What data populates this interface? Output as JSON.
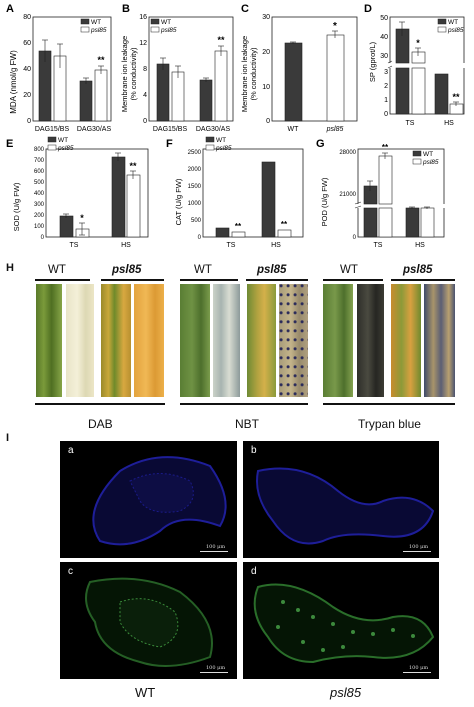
{
  "panels": {
    "A": {
      "letter": "A",
      "ylabel": "MDA (nmol/g FW)",
      "legend": [
        "WT",
        "psl85"
      ],
      "yticks": [
        "0",
        "20",
        "40",
        "60",
        "80"
      ],
      "categories": [
        "DAG15/BS",
        "DAG30/AS"
      ],
      "sig": "**"
    },
    "B": {
      "letter": "B",
      "ylabel_1": "Membrane ion leakage",
      "ylabel_2": "(% conductivity)",
      "legend": [
        "WT",
        "psl85"
      ],
      "yticks": [
        "0",
        "4",
        "8",
        "12",
        "16"
      ],
      "categories": [
        "DAG15/BS",
        "DAG30/AS"
      ],
      "sig": "**"
    },
    "C": {
      "letter": "C",
      "ylabel_1": "Membrane ion leakage",
      "ylabel_2": "(% conductivity)",
      "yticks": [
        "0",
        "10",
        "20",
        "30"
      ],
      "categories": [
        "WT",
        "psl85"
      ],
      "sig": "*"
    },
    "D": {
      "letter": "D",
      "ylabel": "SP (gprot/L)",
      "legend": [
        "WT",
        "psl85"
      ],
      "yticks": [
        "0",
        "1",
        "2",
        "3",
        "30",
        "40",
        "50"
      ],
      "categories": [
        "TS",
        "HS"
      ],
      "sig_ts": "*",
      "sig_hs": "**"
    },
    "E": {
      "letter": "E",
      "ylabel": "SOD (U/g FW)",
      "legend": [
        "WT",
        "psl85"
      ],
      "yticks": [
        "0",
        "100",
        "200",
        "300",
        "400",
        "500",
        "600",
        "700",
        "800"
      ],
      "categories": [
        "TS",
        "HS"
      ],
      "sig_ts": "*",
      "sig_hs": "**"
    },
    "F": {
      "letter": "F",
      "ylabel": "CAT (U/g FW)",
      "legend": [
        "WT",
        "psl85"
      ],
      "yticks": [
        "0",
        "500",
        "1000",
        "1500",
        "2000",
        "2500"
      ],
      "categories": [
        "TS",
        "HS"
      ],
      "sig_ts": "**",
      "sig_hs": "**"
    },
    "G": {
      "letter": "G",
      "ylabel": "POD (U/g FW)",
      "legend": [
        "WT",
        "psl85"
      ],
      "yticks": [
        "0",
        "21000",
        "28000"
      ],
      "categories": [
        "TS",
        "HS"
      ],
      "sig_ts": "**"
    },
    "H": {
      "letter": "H",
      "groups": [
        {
          "wt": "WT",
          "mut": "psl85",
          "stain": "DAB"
        },
        {
          "wt": "WT",
          "mut": "psl85",
          "stain": "NBT"
        },
        {
          "wt": "WT",
          "mut": "psl85",
          "stain": "Trypan blue"
        }
      ]
    },
    "I": {
      "letter": "I",
      "subpanels": [
        "a",
        "b",
        "c",
        "d"
      ],
      "scale": "100 μm",
      "bottom_wt": "WT",
      "bottom_mut": "psl85"
    }
  },
  "chart_data": [
    {
      "type": "bar",
      "panel": "A",
      "ylabel": "MDA (nmol/g FW)",
      "ylim": [
        0,
        80
      ],
      "categories": [
        "DAG15/BS",
        "DAG30/AS"
      ],
      "series": [
        {
          "name": "WT",
          "values": [
            54,
            31
          ],
          "errors": [
            8,
            2
          ]
        },
        {
          "name": "psl85",
          "values": [
            50,
            39
          ],
          "errors": [
            9,
            3
          ]
        }
      ]
    },
    {
      "type": "bar",
      "panel": "B",
      "ylabel": "Membrane ion leakage (% conductivity)",
      "ylim": [
        0,
        16
      ],
      "categories": [
        "DAG15/BS",
        "DAG30/AS"
      ],
      "series": [
        {
          "name": "WT",
          "values": [
            8.8,
            6.3
          ],
          "errors": [
            1.0,
            0.3
          ]
        },
        {
          "name": "psl85",
          "values": [
            7.6,
            10.7
          ],
          "errors": [
            1.0,
            0.8
          ]
        }
      ]
    },
    {
      "type": "bar",
      "panel": "C",
      "ylabel": "Membrane ion leakage (% conductivity)",
      "ylim": [
        0,
        30
      ],
      "categories": [
        "WT",
        "psl85"
      ],
      "series": [
        {
          "values": [
            22.5,
            24.7
          ],
          "errors": [
            0.4,
            1.0
          ]
        }
      ]
    },
    {
      "type": "bar",
      "panel": "D",
      "ylabel": "SP (gprot/L)",
      "categories": [
        "TS",
        "HS"
      ],
      "series": [
        {
          "name": "WT",
          "values": [
            42,
            2.1
          ],
          "errors": [
            3.5,
            0.03
          ]
        },
        {
          "name": "psl85",
          "values": [
            30,
            0.6
          ],
          "errors": [
            2,
            0.05
          ]
        }
      ]
    },
    {
      "type": "bar",
      "panel": "E",
      "ylabel": "SOD (U/g FW)",
      "ylim": [
        0,
        800
      ],
      "categories": [
        "TS",
        "HS"
      ],
      "series": [
        {
          "name": "WT",
          "values": [
            195,
            730
          ],
          "errors": [
            15,
            40
          ]
        },
        {
          "name": "psl85",
          "values": [
            70,
            570
          ],
          "errors": [
            40,
            40
          ]
        }
      ]
    },
    {
      "type": "bar",
      "panel": "F",
      "ylabel": "CAT (U/g FW)",
      "ylim": [
        0,
        2500
      ],
      "categories": [
        "TS",
        "HS"
      ],
      "series": [
        {
          "name": "WT",
          "values": [
            270,
            2160
          ],
          "errors": [
            30,
            15
          ]
        },
        {
          "name": "psl85",
          "values": [
            150,
            200
          ],
          "errors": [
            20,
            30
          ]
        }
      ]
    },
    {
      "type": "bar",
      "panel": "G",
      "ylabel": "POD (U/g FW)",
      "ylim": [
        0,
        28000
      ],
      "categories": [
        "TS",
        "HS"
      ],
      "series": [
        {
          "name": "WT",
          "values": [
            21200,
            19400
          ],
          "errors": [
            800,
            100
          ]
        },
        {
          "name": "psl85",
          "values": [
            26400,
            19500
          ],
          "errors": [
            400,
            100
          ]
        }
      ]
    }
  ]
}
